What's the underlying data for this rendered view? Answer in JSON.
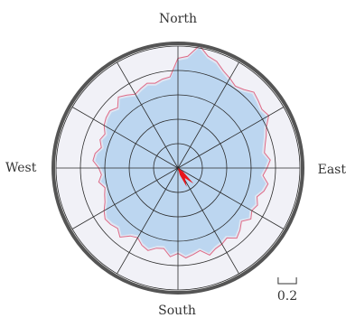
{
  "chart_data": {
    "type": "polar-area",
    "title": "",
    "directions": {
      "north": "North",
      "east": "East",
      "south": "South",
      "west": "West"
    },
    "scale_bar": {
      "label": "0.2",
      "value": 0.2
    },
    "radial_max": 1.0,
    "rings": [
      0.2,
      0.4,
      0.6,
      0.8,
      1.0
    ],
    "spokes_deg": [
      0,
      30,
      60,
      90,
      120,
      150,
      180,
      210,
      240,
      270,
      300,
      330
    ],
    "series": [
      {
        "kind": "envelope",
        "angle_step_deg": 5,
        "values": [
          0.9,
          0.92,
          1.02,
          0.95,
          0.93,
          0.88,
          0.85,
          0.82,
          0.84,
          0.88,
          0.86,
          0.84,
          0.86,
          0.8,
          0.77,
          0.74,
          0.72,
          0.76,
          0.73,
          0.7,
          0.75,
          0.73,
          0.69,
          0.72,
          0.7,
          0.73,
          0.68,
          0.72,
          0.75,
          0.7,
          0.72,
          0.73,
          0.76,
          0.7,
          0.72,
          0.74,
          0.7,
          0.73,
          0.67,
          0.68,
          0.72,
          0.7,
          0.66,
          0.68,
          0.74,
          0.7,
          0.72,
          0.73,
          0.7,
          0.66,
          0.64,
          0.62,
          0.66,
          0.63,
          0.65,
          0.7,
          0.69,
          0.65,
          0.68,
          0.66,
          0.7,
          0.72,
          0.73,
          0.7,
          0.76,
          0.73,
          0.7,
          0.72,
          0.74,
          0.72,
          0.74,
          0.75
        ]
      },
      {
        "kind": "inner",
        "angle_step_deg": 5,
        "values": [
          0.88,
          0.9,
          1.0,
          0.93,
          0.91,
          0.86,
          0.83,
          0.8,
          0.82,
          0.86,
          0.84,
          0.82,
          0.84,
          0.78,
          0.75,
          0.72,
          0.7,
          0.74,
          0.71,
          0.68,
          0.73,
          0.71,
          0.67,
          0.7,
          0.68,
          0.71,
          0.66,
          0.7,
          0.73,
          0.68,
          0.7,
          0.71,
          0.74,
          0.68,
          0.7,
          0.72,
          0.68,
          0.71,
          0.65,
          0.66,
          0.7,
          0.68,
          0.64,
          0.66,
          0.72,
          0.68,
          0.7,
          0.71,
          0.68,
          0.64,
          0.62,
          0.6,
          0.64,
          0.61,
          0.63,
          0.68,
          0.67,
          0.63,
          0.66,
          0.64,
          0.68,
          0.7,
          0.71,
          0.68,
          0.74,
          0.71,
          0.68,
          0.7,
          0.72,
          0.7,
          0.72,
          0.73
        ]
      },
      {
        "kind": "highlight-wedge",
        "from_deg": 125,
        "to_deg": 165,
        "values": [
          0.05,
          0.18,
          0.1,
          0.17,
          0.06
        ]
      }
    ],
    "colors": {
      "outer_ring": "#555555",
      "background_disk": "#f1f1f7",
      "envelope": "#e06a86",
      "inner_fill": "#bcd6f0",
      "grid": "#2a2a2a",
      "wedge": "#e8151b"
    }
  }
}
